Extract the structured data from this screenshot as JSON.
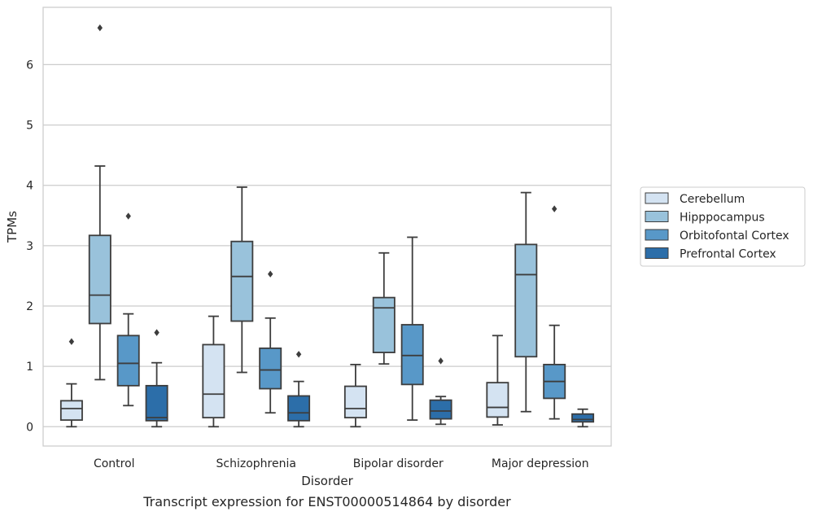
{
  "chart_data": {
    "type": "box",
    "title": "",
    "caption": "Transcript expression for ENST00000514864 by disorder",
    "xlabel": "Disorder",
    "ylabel": "TPMs",
    "ylim": [
      -0.32,
      6.95
    ],
    "yticks": [
      0,
      1,
      2,
      3,
      4,
      5,
      6
    ],
    "grid": true,
    "legend_position": "right",
    "categories": [
      "Control",
      "Schizophrenia",
      "Bipolar disorder",
      "Major depression"
    ],
    "series": [
      {
        "name": "Cerebellum",
        "color": "#d4e3f2",
        "boxes": [
          {
            "whisker_low": 0.0,
            "q1": 0.11,
            "median": 0.3,
            "q3": 0.43,
            "whisker_high": 0.71,
            "outliers": [
              1.41
            ]
          },
          {
            "whisker_low": 0.0,
            "q1": 0.15,
            "median": 0.54,
            "q3": 1.36,
            "whisker_high": 1.83,
            "outliers": []
          },
          {
            "whisker_low": 0.0,
            "q1": 0.15,
            "median": 0.3,
            "q3": 0.67,
            "whisker_high": 1.03,
            "outliers": []
          },
          {
            "whisker_low": 0.03,
            "q1": 0.16,
            "median": 0.32,
            "q3": 0.73,
            "whisker_high": 1.51,
            "outliers": []
          }
        ]
      },
      {
        "name": "Hipppocampus",
        "color": "#99c2db",
        "boxes": [
          {
            "whisker_low": 0.78,
            "q1": 1.71,
            "median": 2.18,
            "q3": 3.17,
            "whisker_high": 4.32,
            "outliers": [
              6.61
            ]
          },
          {
            "whisker_low": 0.9,
            "q1": 1.75,
            "median": 2.49,
            "q3": 3.07,
            "whisker_high": 3.97,
            "outliers": []
          },
          {
            "whisker_low": 1.04,
            "q1": 1.23,
            "median": 1.97,
            "q3": 2.14,
            "whisker_high": 2.88,
            "outliers": []
          },
          {
            "whisker_low": 0.25,
            "q1": 1.16,
            "median": 2.52,
            "q3": 3.02,
            "whisker_high": 3.88,
            "outliers": []
          }
        ]
      },
      {
        "name": "Orbitofontal Cortex",
        "color": "#5898c8",
        "boxes": [
          {
            "whisker_low": 0.35,
            "q1": 0.68,
            "median": 1.05,
            "q3": 1.51,
            "whisker_high": 1.87,
            "outliers": [
              3.49
            ]
          },
          {
            "whisker_low": 0.23,
            "q1": 0.63,
            "median": 0.94,
            "q3": 1.3,
            "whisker_high": 1.8,
            "outliers": [
              2.53
            ]
          },
          {
            "whisker_low": 0.11,
            "q1": 0.7,
            "median": 1.18,
            "q3": 1.69,
            "whisker_high": 3.14,
            "outliers": []
          },
          {
            "whisker_low": 0.13,
            "q1": 0.47,
            "median": 0.75,
            "q3": 1.03,
            "whisker_high": 1.68,
            "outliers": [
              3.61
            ]
          }
        ]
      },
      {
        "name": "Prefrontal Cortex",
        "color": "#2c6ea9",
        "boxes": [
          {
            "whisker_low": 0.0,
            "q1": 0.1,
            "median": 0.15,
            "q3": 0.68,
            "whisker_high": 1.06,
            "outliers": [
              1.56
            ]
          },
          {
            "whisker_low": 0.0,
            "q1": 0.1,
            "median": 0.23,
            "q3": 0.51,
            "whisker_high": 0.75,
            "outliers": [
              1.2
            ]
          },
          {
            "whisker_low": 0.04,
            "q1": 0.13,
            "median": 0.26,
            "q3": 0.44,
            "whisker_high": 0.5,
            "outliers": [
              1.09
            ]
          },
          {
            "whisker_low": 0.0,
            "q1": 0.08,
            "median": 0.12,
            "q3": 0.21,
            "whisker_high": 0.29,
            "outliers": []
          }
        ]
      }
    ]
  }
}
